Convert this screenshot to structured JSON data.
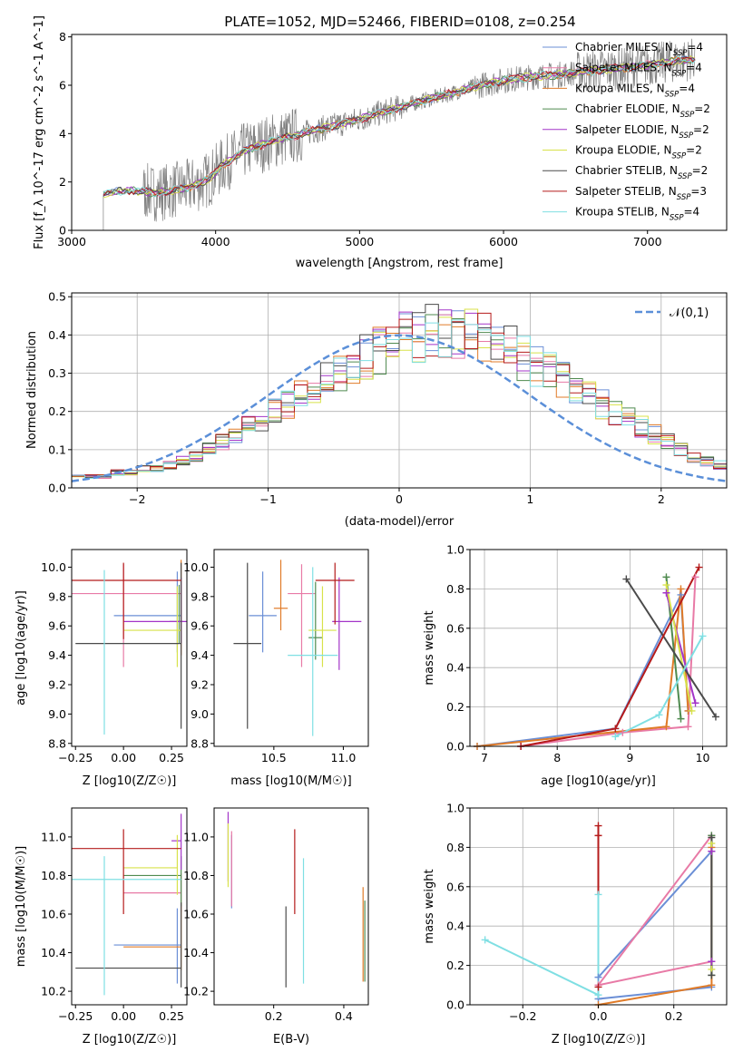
{
  "title": "PLATE=1052, MJD=52466, FIBERID=0108, z=0.254",
  "colors": {
    "chabrier_miles": "#6b8fd6",
    "salpeter_miles": "#e87aa6",
    "kroupa_miles": "#e07b28",
    "chabrier_elodie": "#4f8a4f",
    "salpeter_elodie": "#a335c8",
    "kroupa_elodie": "#d8e24a",
    "chabrier_stelib": "#4a4a4a",
    "salpeter_stelib": "#b51b1b",
    "kroupa_stelib": "#7fdfe3",
    "data": "#808080",
    "normal": "#5b8fd8"
  },
  "chart_data": [
    {
      "id": "spectrum",
      "type": "line",
      "xlabel": "wavelength [Angstrom, rest frame]",
      "ylabel": "Flux [f_λ 10^-17 erg cm^-2 s^-1 A^-1]",
      "xlim": [
        3000,
        7550
      ],
      "ylim": [
        0,
        8.1
      ],
      "xticks": [
        3000,
        4000,
        5000,
        6000,
        7000
      ],
      "yticks": [
        0,
        2,
        4,
        6,
        8
      ],
      "legend_position": "right",
      "legend": [
        "Chabrier MILES, N_SSP=4",
        "Salpeter MILES, N_SSP=4",
        "Kroupa MILES, N_SSP=4",
        "Chabrier ELODIE, N_SSP=2",
        "Salpeter ELODIE, N_SSP=2",
        "Kroupa ELODIE, N_SSP=2",
        "Chabrier STELIB, N_SSP=2",
        "Salpeter STELIB, N_SSP=3",
        "Kroupa STELIB, N_SSP=4"
      ],
      "continuum": {
        "x": [
          3200,
          3400,
          3600,
          3800,
          3950,
          4050,
          4200,
          4400,
          4600,
          4800,
          5000,
          5200,
          5400,
          5600,
          5800,
          6000,
          6200,
          6400,
          6600,
          6800,
          7000,
          7200,
          7350
        ],
        "y": [
          1.5,
          1.65,
          1.55,
          1.75,
          2.1,
          2.7,
          3.3,
          3.7,
          4.0,
          4.3,
          4.6,
          4.95,
          5.3,
          5.6,
          5.95,
          6.2,
          6.35,
          6.45,
          6.6,
          6.7,
          6.85,
          7.0,
          7.1
        ]
      },
      "data_range": [
        3220,
        7330
      ]
    },
    {
      "id": "residuals",
      "type": "bar",
      "xlabel": "(data-model)/error",
      "ylabel": "Normed distribution",
      "xlim": [
        -2.5,
        2.5
      ],
      "ylim": [
        0,
        0.51
      ],
      "xticks": [
        -2,
        -1,
        0,
        1,
        2
      ],
      "yticks": [
        0.0,
        0.1,
        0.2,
        0.3,
        0.4,
        0.5
      ],
      "grid": true,
      "legend": "𝒩(0,1)",
      "legend_position": "top-right",
      "bin_width": 0.1,
      "base_values": [
        0.03,
        0.03,
        0.03,
        0.04,
        0.04,
        0.05,
        0.05,
        0.06,
        0.07,
        0.08,
        0.1,
        0.12,
        0.14,
        0.16,
        0.18,
        0.2,
        0.22,
        0.24,
        0.26,
        0.28,
        0.3,
        0.32,
        0.34,
        0.36,
        0.38,
        0.39,
        0.4,
        0.4,
        0.41,
        0.4,
        0.4,
        0.39,
        0.38,
        0.36,
        0.34,
        0.32,
        0.3,
        0.28,
        0.26,
        0.24,
        0.22,
        0.2,
        0.18,
        0.16,
        0.14,
        0.12,
        0.1,
        0.08,
        0.07,
        0.06
      ]
    },
    {
      "id": "age_vs_Z",
      "type": "scatter",
      "xlabel": "Z [log10(Z/Z☉)]",
      "ylabel": "age [log10(age/yr)]",
      "xlim": [
        -0.27,
        0.33
      ],
      "ylim": [
        8.78,
        10.12
      ],
      "xticks": [
        -0.25,
        0.0,
        0.25
      ],
      "yticks": [
        8.8,
        9.0,
        9.2,
        9.4,
        9.6,
        9.8,
        10.0
      ],
      "points": [
        {
          "x": 0.28,
          "y": 9.67,
          "xerr": [
            0.33,
            0.02
          ],
          "yerr": [
            0.25,
            0.3
          ]
        },
        {
          "x": 0.0,
          "y": 9.82,
          "xerr": [
            0.3,
            0.3
          ],
          "yerr": [
            0.5,
            0.2
          ]
        },
        {
          "x": 0.3,
          "y": 9.55,
          "xerr": [
            0.0,
            0.0
          ],
          "yerr": [
            0.15,
            0.5
          ]
        },
        {
          "x": 0.29,
          "y": 9.63,
          "xerr": [
            0.05,
            0.02
          ],
          "yerr": [
            0.15,
            0.25
          ]
        },
        {
          "x": 0.3,
          "y": 9.63,
          "xerr": [
            0.3,
            0.03
          ],
          "yerr": [
            0.15,
            0.3
          ]
        },
        {
          "x": 0.28,
          "y": 9.57,
          "xerr": [
            0.28,
            0.02
          ],
          "yerr": [
            0.25,
            0.3
          ]
        },
        {
          "x": 0.3,
          "y": 9.48,
          "xerr": [
            0.55,
            0.0
          ],
          "yerr": [
            0.58,
            0.55
          ]
        },
        {
          "x": 0.0,
          "y": 9.91,
          "xerr": [
            0.3,
            0.3
          ],
          "yerr": [
            0.4,
            0.12
          ]
        },
        {
          "x": -0.1,
          "y": 9.41,
          "xerr": [
            0.0,
            0.0
          ],
          "yerr": [
            0.55,
            0.57
          ]
        }
      ]
    },
    {
      "id": "age_vs_mass",
      "type": "scatter",
      "xlabel": "mass [log10(M/M☉)]",
      "ylabel": "",
      "xlim": [
        10.07,
        11.18
      ],
      "ylim": [
        8.78,
        10.12
      ],
      "xticks": [
        10.5,
        11.0
      ],
      "yticks": [
        8.8,
        9.0,
        9.2,
        9.4,
        9.6,
        9.8,
        10.0
      ],
      "points": [
        {
          "x": 10.42,
          "y": 9.67,
          "xerr": [
            0.1,
            0.1
          ],
          "yerr": [
            0.25,
            0.3
          ]
        },
        {
          "x": 10.7,
          "y": 9.82,
          "xerr": [
            0.1,
            0.1
          ],
          "yerr": [
            0.5,
            0.2
          ]
        },
        {
          "x": 10.55,
          "y": 9.72,
          "xerr": [
            0.05,
            0.05
          ],
          "yerr": [
            0.15,
            0.33
          ]
        },
        {
          "x": 10.8,
          "y": 9.52,
          "xerr": [
            0.05,
            0.05
          ],
          "yerr": [
            0.15,
            0.38
          ]
        },
        {
          "x": 10.97,
          "y": 9.63,
          "xerr": [
            0.05,
            0.16
          ],
          "yerr": [
            0.33,
            0.3
          ]
        },
        {
          "x": 10.85,
          "y": 9.57,
          "xerr": [
            0.1,
            0.1
          ],
          "yerr": [
            0.25,
            0.3
          ]
        },
        {
          "x": 10.31,
          "y": 9.48,
          "xerr": [
            0.1,
            0.1
          ],
          "yerr": [
            0.58,
            0.55
          ]
        },
        {
          "x": 10.94,
          "y": 9.91,
          "xerr": [
            0.14,
            0.14
          ],
          "yerr": [
            0.3,
            0.12
          ]
        },
        {
          "x": 10.78,
          "y": 9.4,
          "xerr": [
            0.18,
            0.18
          ],
          "yerr": [
            0.55,
            0.6
          ]
        }
      ]
    },
    {
      "id": "weight_vs_age",
      "type": "line",
      "xlabel": "age [log10(age/yr)]",
      "ylabel": "mass weight",
      "xlim": [
        6.8,
        10.33
      ],
      "ylim": [
        0,
        1.0
      ],
      "xticks": [
        7,
        8,
        9,
        10
      ],
      "yticks": [
        0.0,
        0.2,
        0.4,
        0.6,
        0.8,
        1.0
      ],
      "grid": true,
      "series": [
        {
          "x": [
            6.9,
            8.8,
            9.7,
            9.8
          ],
          "y": [
            0.0,
            0.09,
            0.77,
            0.18
          ]
        },
        {
          "x": [
            7.5,
            8.9,
            9.8,
            9.9
          ],
          "y": [
            0.0,
            0.07,
            0.1,
            0.86
          ]
        },
        {
          "x": [
            6.9,
            9.5,
            9.7,
            9.8
          ],
          "y": [
            0.0,
            0.1,
            0.8,
            0.18
          ]
        },
        {
          "x": [
            9.5,
            9.7
          ],
          "y": [
            0.86,
            0.14
          ]
        },
        {
          "x": [
            9.5,
            9.9
          ],
          "y": [
            0.78,
            0.22
          ]
        },
        {
          "x": [
            9.5,
            9.85
          ],
          "y": [
            0.82,
            0.18
          ]
        },
        {
          "x": [
            8.95,
            10.18
          ],
          "y": [
            0.85,
            0.15
          ]
        },
        {
          "x": [
            7.5,
            8.8,
            9.95
          ],
          "y": [
            0.0,
            0.09,
            0.91
          ]
        },
        {
          "x": [
            8.8,
            9.4,
            10.0
          ],
          "y": [
            0.05,
            0.16,
            0.56
          ]
        }
      ]
    },
    {
      "id": "mass_vs_Z",
      "type": "scatter",
      "xlabel": "Z [log10(Z/Z☉)]",
      "ylabel": "mass [log10(M/M☉)]",
      "xlim": [
        -0.27,
        0.33
      ],
      "ylim": [
        10.13,
        11.15
      ],
      "xticks": [
        -0.25,
        0.0,
        0.25
      ],
      "yticks": [
        10.2,
        10.4,
        10.6,
        10.8,
        11.0
      ],
      "points": [
        {
          "x": 0.28,
          "y": 10.44,
          "xerr": [
            0.33,
            0.02
          ],
          "yerr": [
            0.2,
            0.19
          ]
        },
        {
          "x": 0.3,
          "y": 10.71,
          "xerr": [
            0.3,
            0.0
          ],
          "yerr": [
            0.1,
            0.1
          ]
        },
        {
          "x": 0.3,
          "y": 10.43,
          "xerr": [
            0.3,
            0.0
          ],
          "yerr": [
            0.12,
            0.23
          ]
        },
        {
          "x": 0.3,
          "y": 10.8,
          "xerr": [
            0.3,
            0.0
          ],
          "yerr": [
            0.16,
            0.1
          ]
        },
        {
          "x": 0.3,
          "y": 10.98,
          "xerr": [
            0.05,
            0.0
          ],
          "yerr": [
            0.15,
            0.14
          ]
        },
        {
          "x": 0.28,
          "y": 10.84,
          "xerr": [
            0.28,
            0.0
          ],
          "yerr": [
            0.14,
            0.17
          ]
        },
        {
          "x": 0.3,
          "y": 10.32,
          "xerr": [
            0.55,
            0.0
          ],
          "yerr": [
            0.1,
            0.34
          ]
        },
        {
          "x": 0.0,
          "y": 10.94,
          "xerr": [
            0.3,
            0.3
          ],
          "yerr": [
            0.34,
            0.1
          ]
        },
        {
          "x": -0.1,
          "y": 10.78,
          "xerr": [
            0.2,
            0.4
          ],
          "yerr": [
            0.6,
            0.12
          ]
        }
      ]
    },
    {
      "id": "mass_vs_EBV",
      "type": "scatter",
      "xlabel": "E(B-V)",
      "ylabel": "",
      "xlim": [
        0.03,
        0.47
      ],
      "ylim": [
        10.13,
        11.15
      ],
      "xticks": [
        0.2,
        0.4
      ],
      "yticks": [
        10.2,
        10.4,
        10.6,
        10.8,
        11.0
      ],
      "points": [
        {
          "x": 0.08,
          "y": 10.93,
          "yerr": [
            0.3,
            0.08
          ]
        },
        {
          "x": 0.08,
          "y": 10.78,
          "yerr": [
            0.14,
            0.25
          ]
        },
        {
          "x": 0.455,
          "y": 10.5,
          "yerr": [
            0.25,
            0.24
          ]
        },
        {
          "x": 0.46,
          "y": 10.45,
          "yerr": [
            0.2,
            0.22
          ]
        },
        {
          "x": 0.07,
          "y": 10.97,
          "yerr": [
            0.2,
            0.16
          ]
        },
        {
          "x": 0.07,
          "y": 10.9,
          "yerr": [
            0.16,
            0.17
          ]
        },
        {
          "x": 0.235,
          "y": 10.43,
          "yerr": [
            0.21,
            0.21
          ]
        },
        {
          "x": 0.26,
          "y": 10.82,
          "yerr": [
            0.22,
            0.22
          ]
        },
        {
          "x": 0.285,
          "y": 10.57,
          "yerr": [
            0.33,
            0.32
          ]
        }
      ]
    },
    {
      "id": "weight_vs_Z",
      "type": "line",
      "xlabel": "Z [log10(Z/Z☉)]",
      "ylabel": "mass weight",
      "xlim": [
        -0.34,
        0.34
      ],
      "ylim": [
        0,
        1.0
      ],
      "xticks": [
        -0.2,
        0.0,
        0.2
      ],
      "yticks": [
        0.0,
        0.2,
        0.4,
        0.6,
        0.8,
        1.0
      ],
      "grid": true,
      "series": [
        {
          "x": [
            0.3,
            0.0,
            0.0,
            0.3
          ],
          "y": [
            0.78,
            0.14,
            0.03,
            0.09
          ]
        },
        {
          "x": [
            0.3,
            0.0,
            0.3
          ],
          "y": [
            0.22,
            0.1,
            0.86
          ]
        },
        {
          "x": [
            0.0,
            0.3,
            0.3
          ],
          "y": [
            0.0,
            0.1,
            0.8
          ]
        },
        {
          "x": [
            0.3,
            0.3
          ],
          "y": [
            0.15,
            0.86
          ]
        },
        {
          "x": [
            0.3,
            0.3
          ],
          "y": [
            0.22,
            0.78
          ]
        },
        {
          "x": [
            0.3,
            0.3
          ],
          "y": [
            0.18,
            0.82
          ]
        },
        {
          "x": [
            0.3,
            0.3
          ],
          "y": [
            0.15,
            0.85
          ]
        },
        {
          "x": [
            0.0,
            0.0,
            0.0
          ],
          "y": [
            0.09,
            0.86,
            0.91
          ]
        },
        {
          "x": [
            -0.3,
            0.0,
            0.0
          ],
          "y": [
            0.33,
            0.05,
            0.56
          ]
        }
      ]
    }
  ]
}
